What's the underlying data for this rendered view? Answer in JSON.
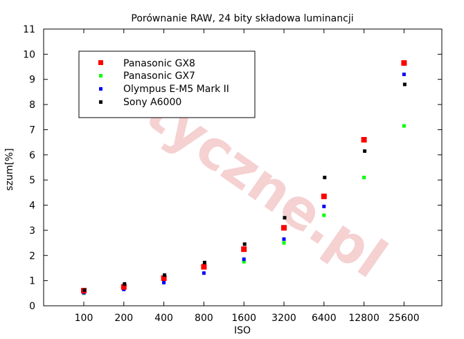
{
  "chart_data": {
    "type": "scatter",
    "title": "Porównanie RAW, 24 bity składowa luminancji",
    "xlabel": "ISO",
    "ylabel": "szum[%]",
    "categories": [
      "100",
      "200",
      "400",
      "800",
      "1600",
      "3200",
      "6400",
      "12800",
      "25600"
    ],
    "ylim": [
      0,
      11
    ],
    "yticks": [
      0,
      1,
      2,
      3,
      4,
      5,
      6,
      7,
      8,
      9,
      10,
      11
    ],
    "grid": false,
    "legend_position": "top-left",
    "watermark": "optyczne.pl",
    "series": [
      {
        "name": "Panasonic GX8",
        "color": "#ff0000",
        "marker_size": "large",
        "values": [
          0.6,
          0.75,
          1.1,
          1.55,
          2.25,
          3.1,
          4.35,
          6.6,
          9.65
        ]
      },
      {
        "name": "Panasonic GX7",
        "color": "#00ff00",
        "marker_size": "small",
        "values": [
          0.5,
          0.8,
          1.0,
          1.6,
          1.75,
          2.5,
          3.6,
          5.1,
          7.15
        ]
      },
      {
        "name": "Olympus E-M5 Mark II",
        "color": "#0000ff",
        "marker_size": "small",
        "values": [
          0.52,
          0.65,
          0.92,
          1.3,
          1.85,
          2.65,
          3.95,
          6.6,
          9.2
        ]
      },
      {
        "name": "Sony A6000",
        "color": "#000000",
        "marker_size": "small",
        "values": [
          0.62,
          0.87,
          1.22,
          1.72,
          2.45,
          3.5,
          5.1,
          6.15,
          8.8
        ]
      }
    ]
  }
}
